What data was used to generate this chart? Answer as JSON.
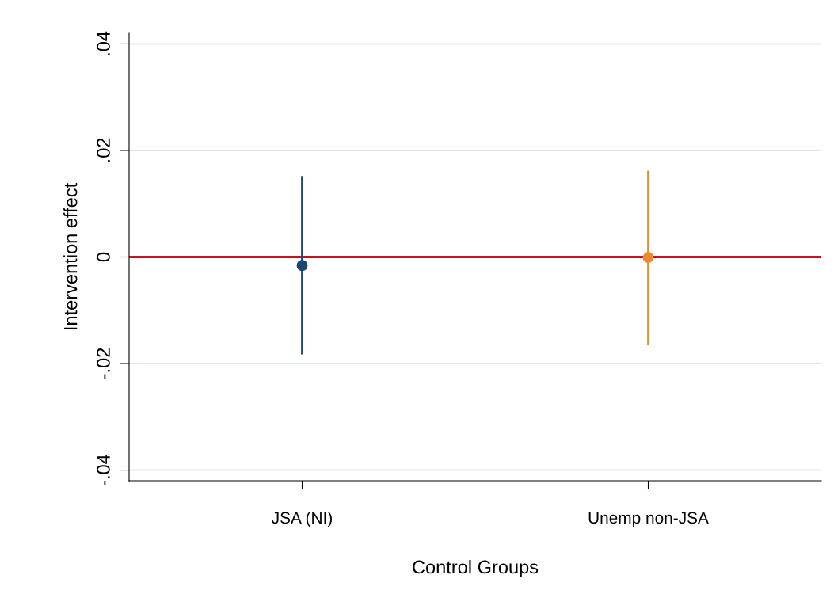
{
  "chart_data": {
    "type": "scatter",
    "xlabel": "Control Groups",
    "ylabel": "Intervention effect",
    "categories": [
      "JSA (NI)",
      "Unemp non-JSA"
    ],
    "series": [
      {
        "colors": [
          "#1a476f",
          "#f0882e"
        ],
        "values": [
          -0.0016,
          -0.0001
        ],
        "errors": [
          [
            -0.0183,
            0.0152
          ],
          [
            -0.0166,
            0.0162
          ]
        ]
      }
    ],
    "ylim": [
      -0.042,
      0.042
    ],
    "yticks": [
      {
        "value": -0.04,
        "label": "-.04"
      },
      {
        "value": -0.02,
        "label": "-.02"
      },
      0,
      {
        "value": 0.02,
        "label": ".02"
      },
      {
        "value": 0.04,
        "label": ".04"
      }
    ],
    "grid": "y",
    "marker": "circle",
    "legend": false,
    "ref_lines": [
      {
        "axis": "y",
        "value": 0,
        "color": "#c8101e"
      }
    ]
  }
}
